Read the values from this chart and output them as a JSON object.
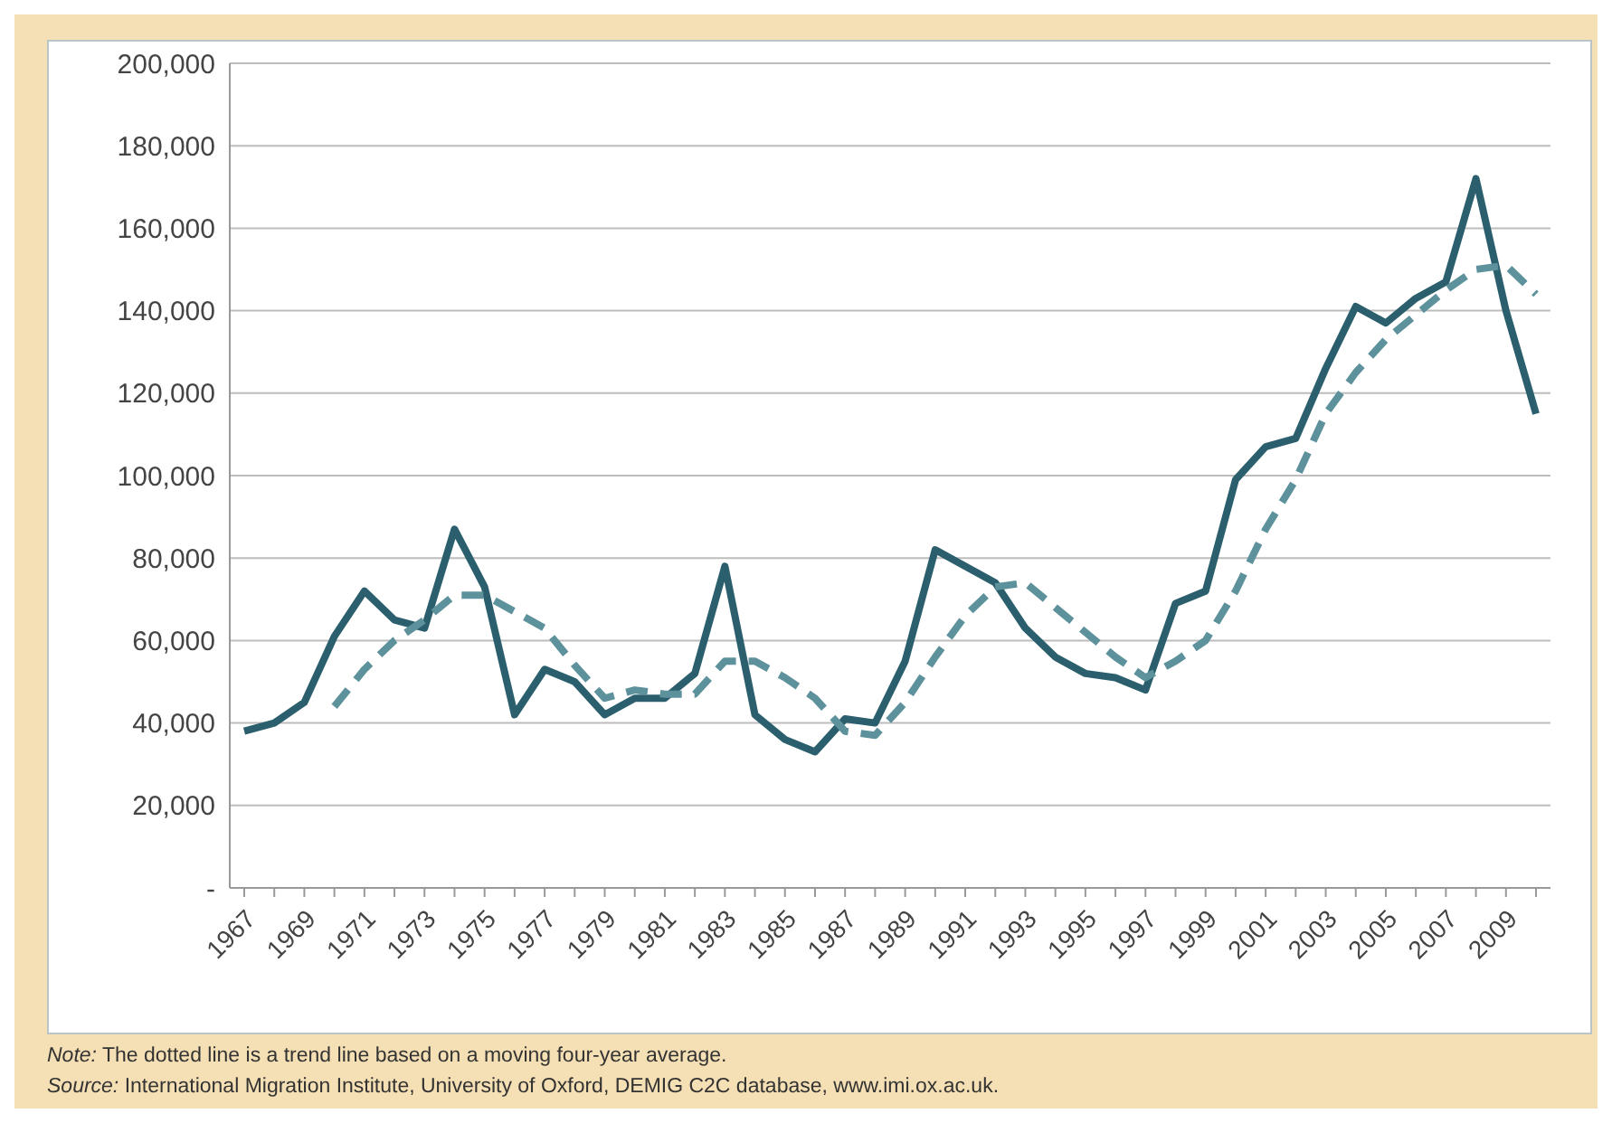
{
  "chart_data": {
    "type": "line",
    "categories": [
      "1967",
      null,
      "1969",
      null,
      "1971",
      null,
      "1973",
      null,
      "1975",
      null,
      "1977",
      null,
      "1979",
      null,
      "1981",
      null,
      "1983",
      null,
      "1985",
      null,
      "1987",
      null,
      "1989",
      null,
      "1991",
      null,
      "1993",
      null,
      "1995",
      null,
      "1997",
      null,
      "1999",
      null,
      "2001",
      null,
      "2003",
      null,
      "2005",
      null,
      "2007",
      null,
      "2009",
      null
    ],
    "series": [
      {
        "color": "#2b5f6d",
        "line_style": "solid",
        "values": [
          38000,
          40000,
          45000,
          61000,
          72000,
          65000,
          63000,
          87000,
          73000,
          42000,
          53000,
          50000,
          42000,
          46000,
          46000,
          52000,
          78000,
          42000,
          36000,
          33000,
          41000,
          40000,
          55000,
          82000,
          78000,
          74000,
          63000,
          56000,
          52000,
          51000,
          48000,
          69000,
          72000,
          99000,
          107000,
          109000,
          126000,
          141000,
          137000,
          143000,
          147000,
          172000,
          140000,
          115000
        ]
      },
      {
        "color": "#5d919b",
        "line_style": "dashed",
        "values": [
          null,
          null,
          null,
          44000,
          53000,
          60000,
          65000,
          71000,
          71000,
          67000,
          63000,
          54000,
          46000,
          48000,
          47000,
          47000,
          55000,
          55000,
          51000,
          46000,
          38000,
          37000,
          45000,
          56000,
          66000,
          73000,
          74000,
          68000,
          62000,
          56000,
          51000,
          55000,
          60000,
          72000,
          87000,
          99000,
          115000,
          125000,
          133000,
          139000,
          145000,
          150000,
          151000,
          144000
        ]
      }
    ],
    "ylim": [
      0,
      200000
    ],
    "yticks": [
      {
        "value": 0,
        "label": "-"
      },
      {
        "value": 20000,
        "label": "20,000"
      },
      {
        "value": 40000,
        "label": "40,000"
      },
      {
        "value": 60000,
        "label": "60,000"
      },
      {
        "value": 80000,
        "label": "80,000"
      },
      {
        "value": 100000,
        "label": "100,000"
      },
      {
        "value": 120000,
        "label": "120,000"
      },
      {
        "value": 140000,
        "label": "140,000"
      },
      {
        "value": 160000,
        "label": "160,000"
      },
      {
        "value": 180000,
        "label": "180,000"
      },
      {
        "value": 200000,
        "label": "200,000"
      }
    ],
    "grid": "y",
    "annotations": [
      "Note: The dotted line is a trend line based on a moving four-year average.",
      "Source: International Migration Institute, University of Oxford, DEMIG C2C database, www.imi.ox.ac.uk."
    ]
  }
}
